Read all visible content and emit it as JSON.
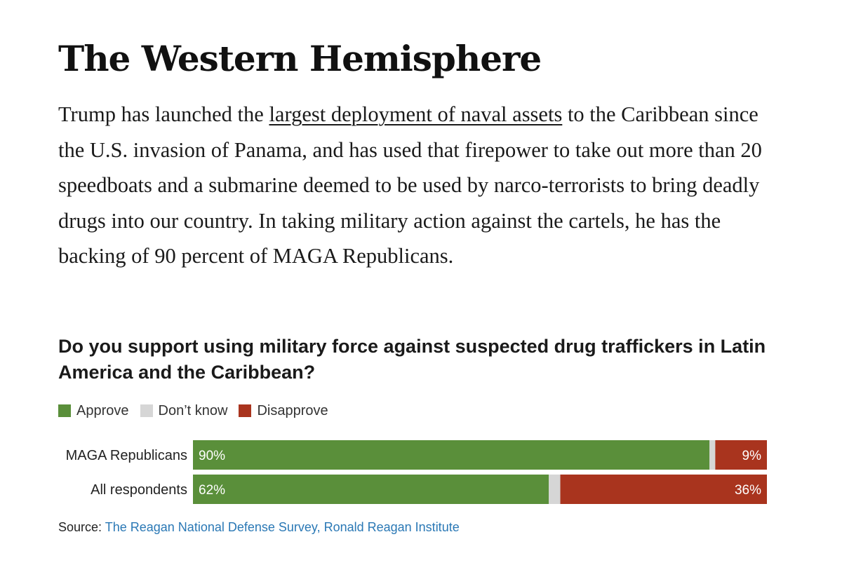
{
  "article": {
    "headline": "The Western Hemisphere",
    "paragraph_before_link": "Trump has launched the ",
    "paragraph_link": "largest deployment of naval assets",
    "paragraph_after_link": " to the Caribbean since the U.S. invasion of Panama, and has used that firepower to take out more than 20 speedboats and a submarine deemed to be used by narco-terrorists to bring deadly drugs into our country. In taking military action against the cartels, he has the backing of 90 percent of MAGA Republicans."
  },
  "chart_data": {
    "type": "bar",
    "stacked": true,
    "orientation": "horizontal",
    "title": "Do you support using military force against suspected drug traffickers in Latin America and the Caribbean?",
    "categories": [
      "MAGA Republicans",
      "All respondents"
    ],
    "series": [
      {
        "name": "Approve",
        "values": [
          90,
          62
        ],
        "labels": [
          "90%",
          "62%"
        ],
        "color": "#5a8f3a"
      },
      {
        "name": "Don’t know",
        "values": [
          1,
          2
        ],
        "labels": [
          "",
          ""
        ],
        "color": "#d6d6d6"
      },
      {
        "name": "Disapprove",
        "values": [
          9,
          36
        ],
        "labels": [
          "9%",
          "36%"
        ],
        "color": "#a9341e"
      }
    ],
    "xlim": [
      0,
      100
    ],
    "legend_position": "top-left",
    "grid": false
  },
  "source": {
    "label": "Source:",
    "text": "The Reagan National Defense Survey, Ronald Reagan Institute"
  }
}
